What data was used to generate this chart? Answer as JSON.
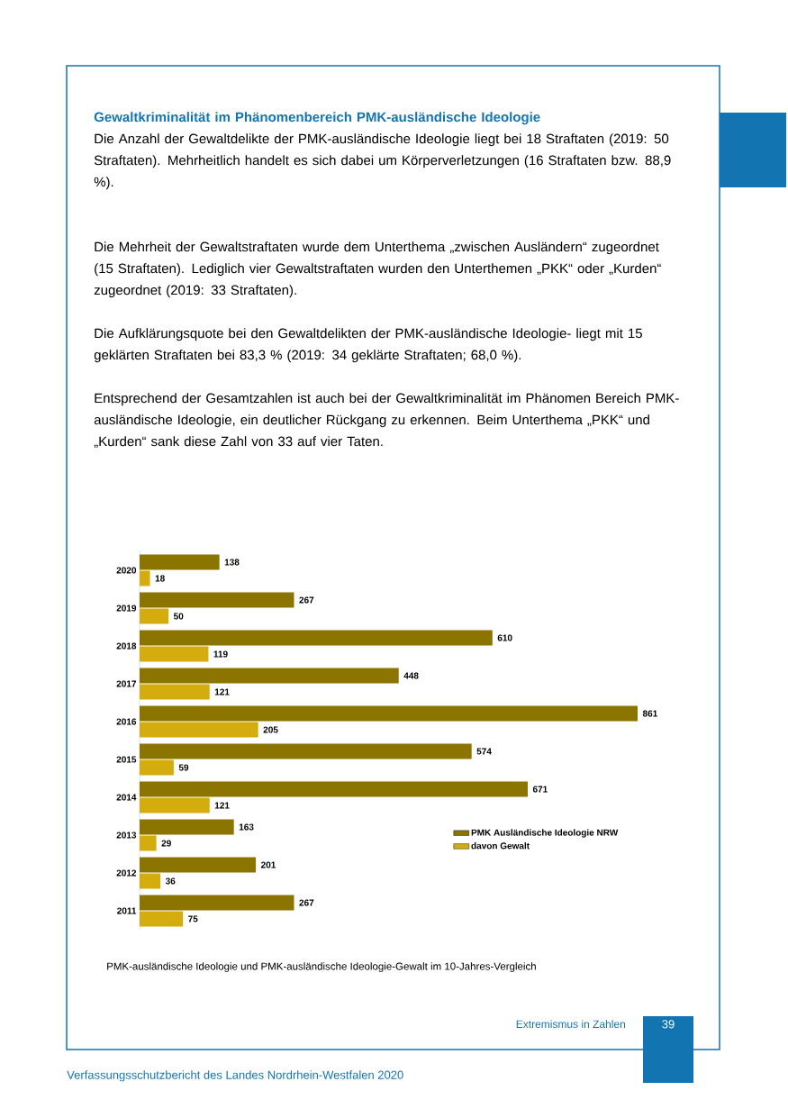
{
  "chart_data": {
    "type": "bar",
    "orientation": "horizontal",
    "title": "Gewaltkriminalität im Phänomenbereich PMK-ausländische Ideologie",
    "categories": [
      "2020",
      "2019",
      "2018",
      "2017",
      "2016",
      "2015",
      "2014",
      "2013",
      "2012",
      "2011"
    ],
    "series": [
      {
        "name": "PMK Ausländische Ideologie NRW",
        "color": "#8b7400",
        "values": [
          138,
          267,
          610,
          448,
          861,
          574,
          671,
          163,
          201,
          267
        ]
      },
      {
        "name": "davon Gewalt",
        "color": "#d4ac0d",
        "values": [
          18,
          50,
          119,
          121,
          205,
          59,
          121,
          29,
          36,
          75
        ]
      }
    ],
    "data_labels": true,
    "legend": "bottom right",
    "annotations": [
      "Die Anzahl der Gewaltdelikte der PMK-ausländische Ideologie liegt bei 18 Straftaten (2019: 50 Straftaten). Mehrheitlich handelt es sich dabei um Körperverletzungen (16 Straftaten bzw. 88,9 %).",
      "Die Mehrheit der Gewaltstraftaten wurde dem Unterthema „zwischen Ausländern“ zugeordnet (15 Straftaten). Lediglich vier Gewaltstraftaten wurden den Unterthemen „PKK“ oder „Kurden“ zugeordnet (2019: 33 Straftaten).",
      "Die Aufklärungsquote bei den Gewaltdelikten der PMK-ausländische Ideologie- liegt mit 15 geklärten Straftaten bei 83,3 % (2019: 34 geklärte Straftaten; 68,0 %).",
      "Entsprechend der Gesamtzahlen ist auch bei der Gewaltkriminalität im Phänomen Bereich PMK-ausländische Ideologie, ein deutlicher Rückgang zu erkennen. Beim Unterthema „PKK“ und „Kurden“ sank diese Zahl von 33 auf vier Taten.",
      "PMK-ausländische Ideologie und PMK-ausländische Ideologie-Gewalt im 10-Jahres-Vergleich",
      "Extremismus in Zahlen",
      "39",
      "Verfassungsschutzbericht des Landes Nordrhein-Westfalen 2020"
    ]
  }
}
